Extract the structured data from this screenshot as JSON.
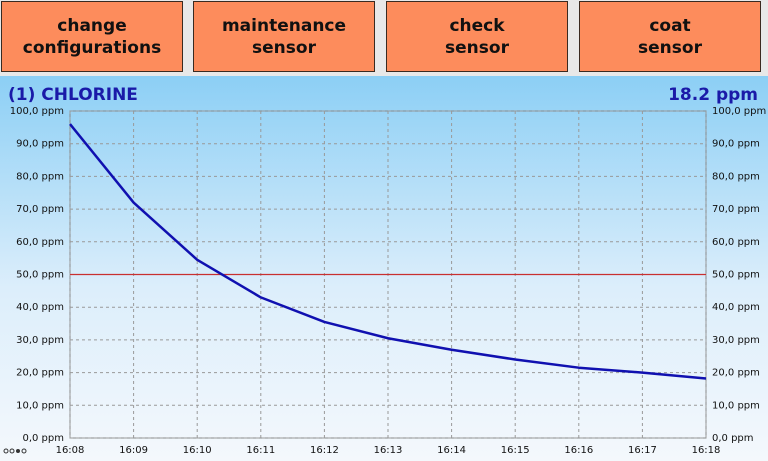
{
  "buttons": [
    {
      "lines": [
        "change",
        "configurations"
      ]
    },
    {
      "lines": [
        "maintenance",
        "sensor"
      ]
    },
    {
      "lines": [
        "check",
        "sensor"
      ]
    },
    {
      "lines": [
        "coat",
        "sensor"
      ]
    }
  ],
  "chart_data": {
    "type": "line",
    "title": "(1) CHLORINE",
    "current_value": "18.2 ppm",
    "categories": [
      "16:08",
      "16:09",
      "16:10",
      "16:11",
      "16:12",
      "16:13",
      "16:14",
      "16:15",
      "16:16",
      "16:17",
      "16:18"
    ],
    "values": [
      96,
      72,
      54.5,
      43,
      35.5,
      30.5,
      27,
      24,
      21.5,
      20,
      18.2
    ],
    "color": "#1010b0",
    "reference_line": {
      "value": 50,
      "color": "#c83030"
    },
    "ylim": [
      0,
      100
    ],
    "yticks": [
      {
        "value": 0,
        "label": "0,0 ppm"
      },
      {
        "value": 10,
        "label": "10,0 ppm"
      },
      {
        "value": 20,
        "label": "20,0 ppm"
      },
      {
        "value": 30,
        "label": "30,0 ppm"
      },
      {
        "value": 40,
        "label": "40,0 ppm"
      },
      {
        "value": 50,
        "label": "50,0 ppm"
      },
      {
        "value": 60,
        "label": "60,0 ppm"
      },
      {
        "value": 70,
        "label": "70,0 ppm"
      },
      {
        "value": 80,
        "label": "80,0 ppm"
      },
      {
        "value": 90,
        "label": "90,0 ppm"
      },
      {
        "value": 100,
        "label": "100,0 ppm"
      }
    ],
    "grid": true
  }
}
